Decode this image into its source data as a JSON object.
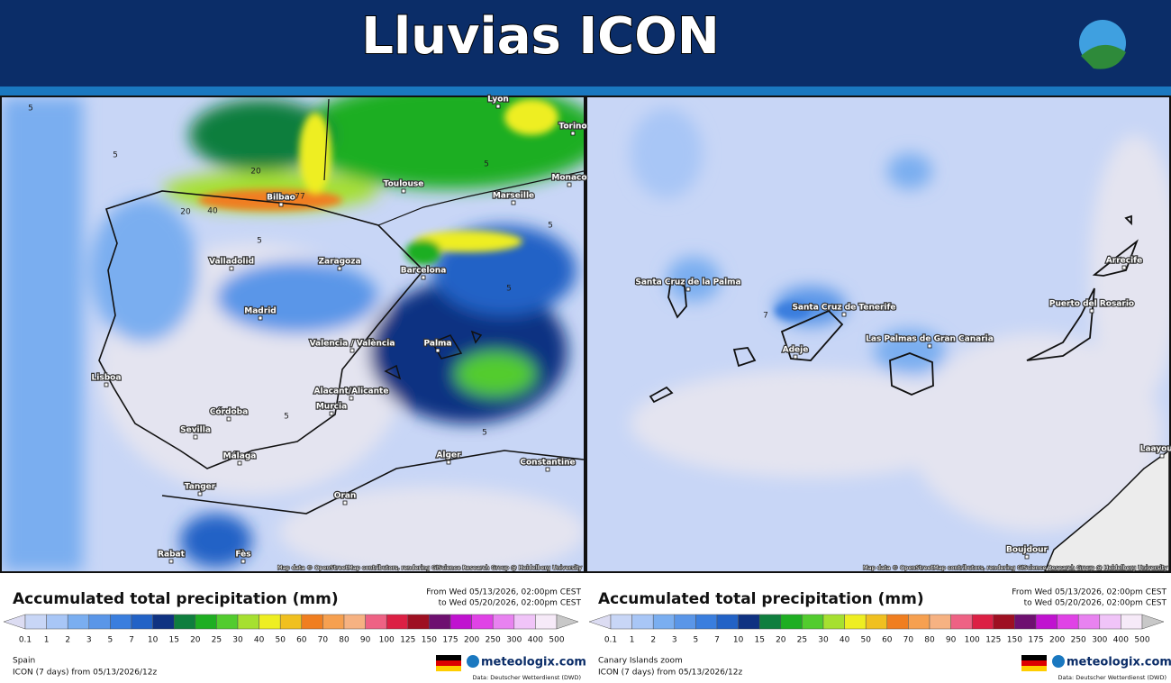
{
  "header": {
    "title": "Lluvias ICON"
  },
  "scale": {
    "labels": [
      "0.1",
      "1",
      "2",
      "3",
      "5",
      "7",
      "10",
      "15",
      "20",
      "25",
      "30",
      "40",
      "50",
      "60",
      "70",
      "80",
      "90",
      "100",
      "125",
      "150",
      "175",
      "200",
      "250",
      "300",
      "400",
      "500"
    ],
    "colors": [
      "#dcdcf2",
      "#c8d6f6",
      "#a8c6f6",
      "#7aaef0",
      "#5a96e8",
      "#3a7ede",
      "#2262c6",
      "#0f3282",
      "#0f7e3e",
      "#1eae22",
      "#52cc2e",
      "#a6e030",
      "#eeee22",
      "#f0c020",
      "#f07e20",
      "#f6a050",
      "#f6b282",
      "#ee6284",
      "#dc2044",
      "#9e1022",
      "#6e1070",
      "#c012d0",
      "#e042e6",
      "#e882f0",
      "#f0c4f8",
      "#f6eaf8",
      "#c8c8c8"
    ]
  },
  "panels": [
    {
      "region": "Spain",
      "legend_title": "Accumulated total precipitation (mm)",
      "from": "From Wed 05/13/2026, 02:00pm CEST",
      "to": "to Wed 05/20/2026, 02:00pm CEST",
      "model": "ICON (7 days) from 05/13/2026/12z",
      "brand": "meteologix.com",
      "source": "Data: Deutscher Wetterdienst (DWD)",
      "attribution": "Map data © OpenStreetMap contributors, rendering GIScience Research Group @ Heidelberg University",
      "places": [
        "Lyon",
        "Torino",
        "Monaco",
        "Marseille",
        "Toulouse",
        "Bilbao",
        "Valladolid",
        "Zaragoza",
        "Barcelona",
        "Madrid",
        "Valencia / València",
        "Palma",
        "Lisboa",
        "Córdoba",
        "Sevilla",
        "Alacant/Alicante",
        "Murcia",
        "Málaga",
        "Alger",
        "Constantine",
        "Oran",
        "Tanger",
        "Rabat",
        "Fès"
      ],
      "contours": [
        "5",
        "5",
        "20",
        "40",
        "77",
        "20",
        "5",
        "5",
        "5",
        "5",
        "5",
        "5"
      ]
    },
    {
      "region": "Canary Islands zoom",
      "legend_title": "Accumulated total precipitation (mm)",
      "from": "From Wed 05/13/2026, 02:00pm CEST",
      "to": "to Wed 05/20/2026, 02:00pm CEST",
      "model": "ICON (7 days) from 05/13/2026/12z",
      "brand": "meteologix.com",
      "source": "Data: Deutscher Wetterdienst (DWD)",
      "attribution": "Map data © OpenStreetMap contributors, rendering GIScience Research Group @ Heidelberg University",
      "places": [
        "Santa Cruz de la Palma",
        "Santa Cruz de Tenerife",
        "Adeje",
        "Las Palmas de Gran Canaria",
        "Puerto del Rosario",
        "Arrecife",
        "Laayoune",
        "Boujdour"
      ],
      "contours": [
        "7"
      ]
    }
  ]
}
